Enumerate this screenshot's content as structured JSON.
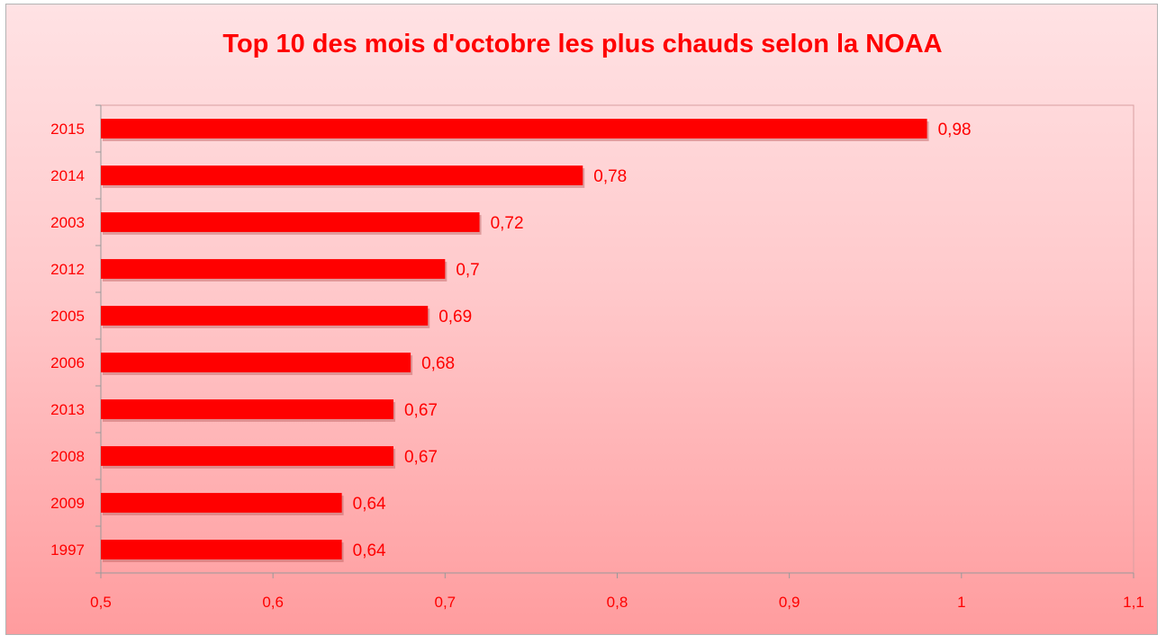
{
  "chart_data": {
    "type": "bar",
    "orientation": "horizontal",
    "title": "Top 10 des mois d'octobre les plus chauds selon la NOAA",
    "categories": [
      "2015",
      "2014",
      "2003",
      "2012",
      "2005",
      "2006",
      "2013",
      "2008",
      "2009",
      "1997"
    ],
    "values": [
      0.98,
      0.78,
      0.72,
      0.7,
      0.69,
      0.68,
      0.67,
      0.67,
      0.64,
      0.64
    ],
    "value_labels": [
      "0,98",
      "0,78",
      "0,72",
      "0,7",
      "0,69",
      "0,68",
      "0,67",
      "0,67",
      "0,64",
      "0,64"
    ],
    "xlim": [
      0.5,
      1.1
    ],
    "x_ticks": [
      0.5,
      0.6,
      0.7,
      0.8,
      0.9,
      1.0,
      1.1
    ],
    "x_tick_labels": [
      "0,5",
      "0,6",
      "0,7",
      "0,8",
      "0,9",
      "1",
      "1,1"
    ],
    "xlabel": "",
    "ylabel": "",
    "grid": false,
    "legend": "none",
    "colors": {
      "bar": "#ff0000",
      "text": "#ff0000",
      "axis": "#999999"
    }
  }
}
